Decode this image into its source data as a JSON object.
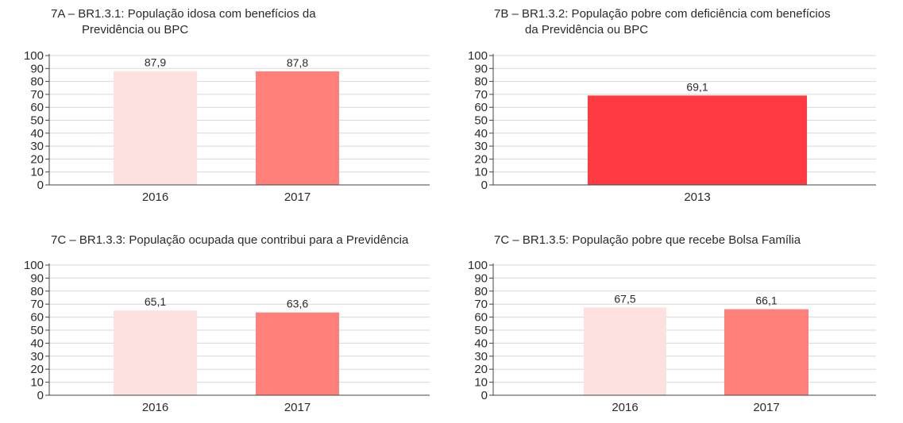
{
  "chart_data": [
    {
      "type": "bar",
      "title": "7A – BR1.3.1: População idosa com benefícios da",
      "subtitle": "Previdência ou BPC",
      "categories": [
        "2016",
        "2017"
      ],
      "values": [
        87.9,
        87.8
      ],
      "value_labels": [
        "87,9",
        "87,8"
      ],
      "colors": [
        "#fde1de",
        "#ff8078"
      ],
      "ylim": [
        0,
        100
      ],
      "yticks": [
        "0",
        "10",
        "20",
        "30",
        "40",
        "50",
        "60",
        "70",
        "80",
        "90",
        "100"
      ],
      "grid": true
    },
    {
      "type": "bar",
      "title": "7B – BR1.3.2: População pobre com deficiência com benefícios",
      "subtitle": "da Previdência ou BPC",
      "categories": [
        "2013"
      ],
      "values": [
        69.1
      ],
      "value_labels": [
        "69,1"
      ],
      "colors": [
        "#ff3a42"
      ],
      "ylim": [
        0,
        100
      ],
      "yticks": [
        "0",
        "10",
        "20",
        "30",
        "40",
        "50",
        "60",
        "70",
        "80",
        "90",
        "100"
      ],
      "grid": true
    },
    {
      "type": "bar",
      "title": "7C – BR1.3.3: População ocupada que contribui para a Previdência",
      "subtitle": "",
      "categories": [
        "2016",
        "2017"
      ],
      "values": [
        65.1,
        63.6
      ],
      "value_labels": [
        "65,1",
        "63,6"
      ],
      "colors": [
        "#fde1de",
        "#ff8078"
      ],
      "ylim": [
        0,
        100
      ],
      "yticks": [
        "0",
        "10",
        "20",
        "30",
        "40",
        "50",
        "60",
        "70",
        "80",
        "90",
        "100"
      ],
      "grid": true
    },
    {
      "type": "bar",
      "title": "7C – BR1.3.5: População pobre que recebe Bolsa Família",
      "subtitle": "",
      "categories": [
        "2016",
        "2017"
      ],
      "values": [
        67.5,
        66.1
      ],
      "value_labels": [
        "67,5",
        "66,1"
      ],
      "colors": [
        "#fde1de",
        "#ff8078"
      ],
      "ylim": [
        0,
        100
      ],
      "yticks": [
        "0",
        "10",
        "20",
        "30",
        "40",
        "50",
        "60",
        "70",
        "80",
        "90",
        "100"
      ],
      "grid": true
    }
  ]
}
